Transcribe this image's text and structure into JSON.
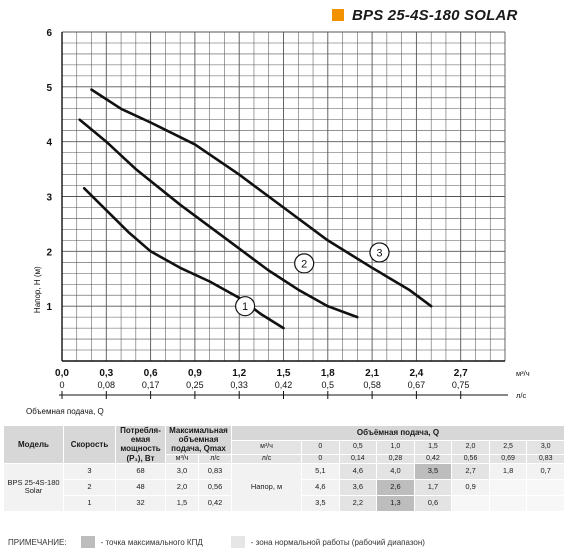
{
  "title": {
    "text": "BPS 25-4S-180 SOLAR",
    "swatch_color": "#f39200"
  },
  "chart_data": {
    "type": "line",
    "ylabel": "Напор, H (м)",
    "x_top_unit": "м³/ч",
    "x_bottom_unit": "л/с",
    "x_bottom_label": "Объемная подача, Q",
    "xlim": [
      0,
      3.0
    ],
    "ylim": [
      0,
      6
    ],
    "x_ticks_m3h": [
      "0,0",
      "0,3",
      "0,6",
      "0,9",
      "1,2",
      "1,5",
      "1,8",
      "2,1",
      "2,4",
      "2,7"
    ],
    "x_ticks_ls": [
      "0",
      "0,08",
      "0,17",
      "0,25",
      "0,33",
      "0,42",
      "0,5",
      "0,58",
      "0,67",
      "0,75"
    ],
    "y_ticks": [
      "1",
      "2",
      "3",
      "4",
      "5",
      "6"
    ],
    "grid": true,
    "series": [
      {
        "name": "1",
        "x": [
          0.15,
          0.3,
          0.45,
          0.6,
          0.8,
          1.0,
          1.2,
          1.35,
          1.5
        ],
        "y": [
          3.15,
          2.75,
          2.35,
          2.0,
          1.7,
          1.45,
          1.15,
          0.85,
          0.6
        ],
        "label_x": 1.24,
        "label_y": 1.0
      },
      {
        "name": "2",
        "x": [
          0.12,
          0.3,
          0.5,
          0.8,
          1.1,
          1.4,
          1.6,
          1.8,
          2.0
        ],
        "y": [
          4.4,
          4.0,
          3.5,
          2.85,
          2.25,
          1.65,
          1.3,
          1.0,
          0.8
        ],
        "label_x": 1.64,
        "label_y": 1.78
      },
      {
        "name": "3",
        "x": [
          0.2,
          0.4,
          0.6,
          0.9,
          1.2,
          1.5,
          1.8,
          2.1,
          2.35,
          2.5
        ],
        "y": [
          4.95,
          4.6,
          4.35,
          3.95,
          3.4,
          2.8,
          2.2,
          1.7,
          1.3,
          1.0
        ],
        "label_x": 2.15,
        "label_y": 1.98
      }
    ]
  },
  "table": {
    "h_model": "Модель",
    "h_speed": "Скорость",
    "h_power": "Потребля-емая мощность (P₁), Вт",
    "h_qmax": "Максимальная объемная подача, Qmax",
    "h_flow": "Объёмная подача, Q",
    "u_m3h": "м³/ч",
    "u_ls": "л/с",
    "flow_m3h": [
      "0",
      "0,5",
      "1,0",
      "1,5",
      "2,0",
      "2,5",
      "3,0"
    ],
    "flow_ls": [
      "0",
      "0,14",
      "0,28",
      "0,42",
      "0,56",
      "0,69",
      "0,83"
    ],
    "model": "BPS 25-4S-180 Solar",
    "head_label": "Напор, м",
    "rows": [
      {
        "speed": "3",
        "power": "68",
        "q_m3h": "3,0",
        "q_ls": "0,83",
        "heads": [
          "5,1",
          "4,6",
          "4,0",
          "3,5",
          "2,7",
          "1,8",
          "0,7"
        ],
        "max_index": 3
      },
      {
        "speed": "2",
        "power": "48",
        "q_m3h": "2,0",
        "q_ls": "0,56",
        "heads": [
          "4,6",
          "3,6",
          "2,6",
          "1,7",
          "0,9",
          "",
          ""
        ],
        "max_index": 2
      },
      {
        "speed": "1",
        "power": "32",
        "q_m3h": "1,5",
        "q_ls": "0,42",
        "heads": [
          "3,5",
          "2,2",
          "1,3",
          "0,6",
          "",
          "",
          ""
        ],
        "max_index": 2
      }
    ]
  },
  "note": {
    "label": "ПРИМЕЧАНИЕ:",
    "max_text": "- точка максимального КПД",
    "zone_text": "- зона нормальной работы (рабочий диапазон)"
  }
}
